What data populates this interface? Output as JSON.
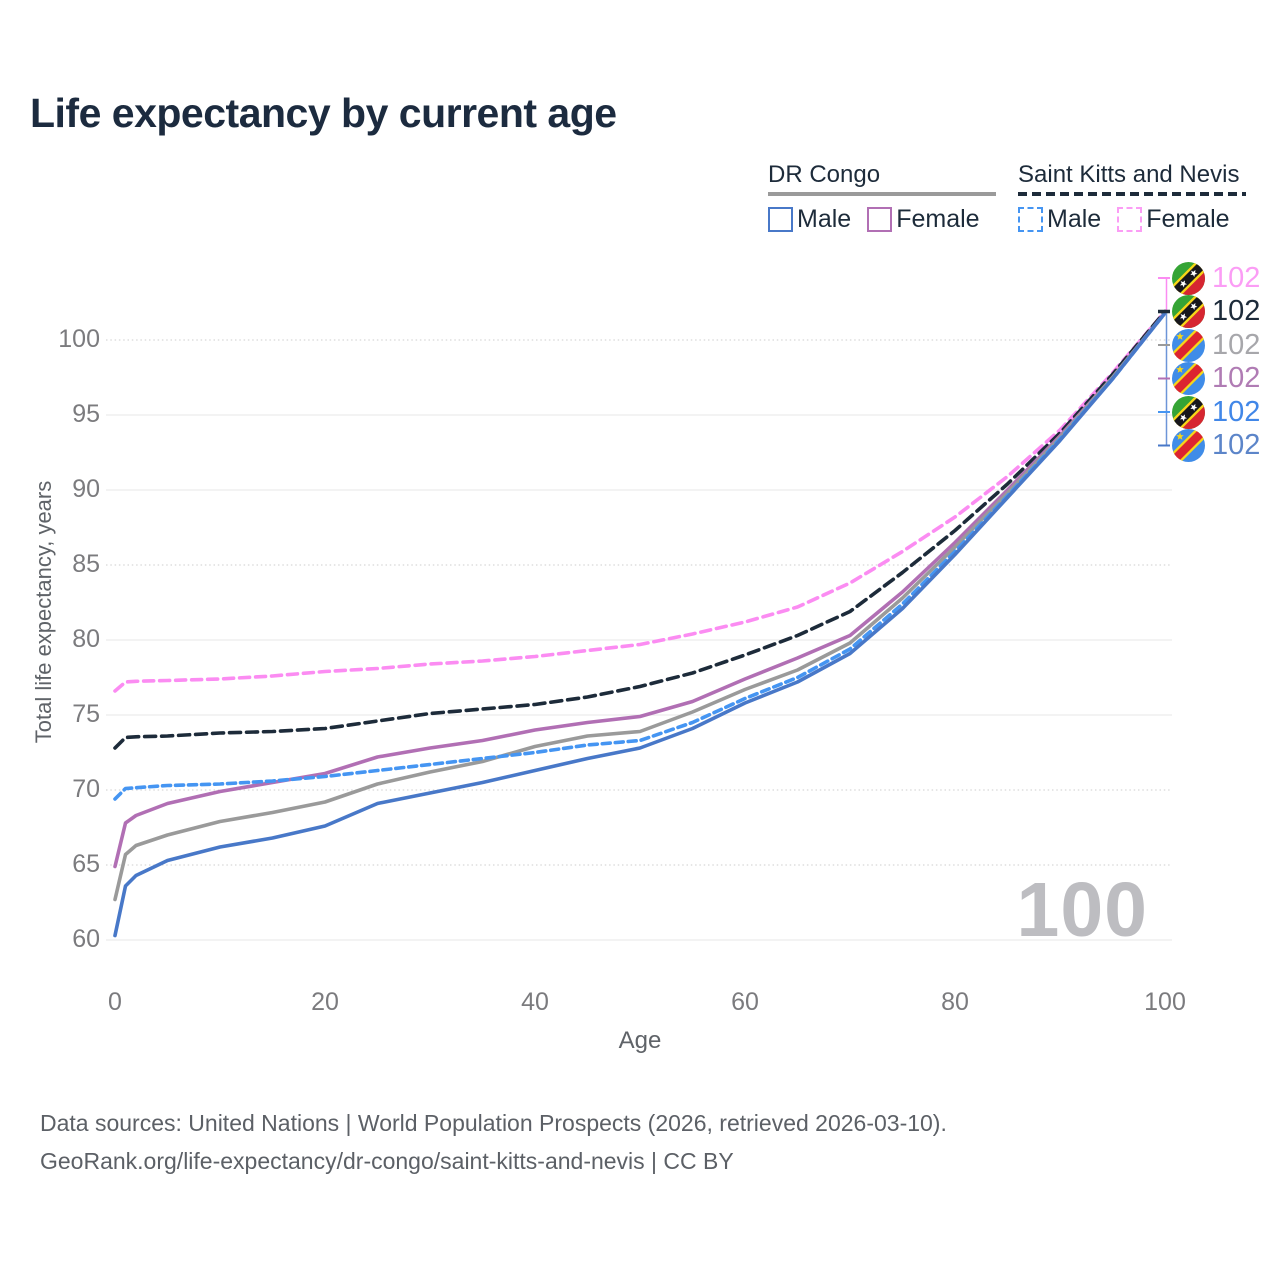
{
  "page": {
    "title": "Life expectancy by current age",
    "watermark": "100"
  },
  "legend": {
    "groups": [
      {
        "country": "DR Congo",
        "line_style": "solid",
        "underline_color": "#9a9a9a",
        "items": [
          {
            "label": "Male",
            "color": "#4878c8",
            "dashed": false
          },
          {
            "label": "Female",
            "color": "#b16fb4",
            "dashed": false
          }
        ]
      },
      {
        "country": "Saint Kitts and Nevis",
        "line_style": "dashed",
        "underline_color": "#1d2b3a",
        "items": [
          {
            "label": "Male",
            "color": "#4595f2",
            "dashed": true
          },
          {
            "label": "Female",
            "color": "#fb9df5",
            "dashed": true
          }
        ]
      }
    ]
  },
  "chart_data": {
    "type": "line",
    "title": "Life expectancy by current age",
    "xlabel": "Age",
    "ylabel": "Total life expectancy, years",
    "xlim": [
      0,
      100
    ],
    "ylim": [
      58,
      103
    ],
    "grid": true,
    "legend_position": "top-right",
    "x_ticks": [
      0,
      20,
      40,
      60,
      80,
      100
    ],
    "y_ticks": [
      {
        "value": 60,
        "style": "solid"
      },
      {
        "value": 65,
        "style": "dotted"
      },
      {
        "value": 70,
        "style": "dotted"
      },
      {
        "value": 75,
        "style": "solid"
      },
      {
        "value": 80,
        "style": "solid"
      },
      {
        "value": 85,
        "style": "dotted"
      },
      {
        "value": 90,
        "style": "solid"
      },
      {
        "value": 95,
        "style": "solid"
      },
      {
        "value": 100,
        "style": "dotted"
      }
    ],
    "ages": [
      0,
      1,
      2,
      5,
      10,
      15,
      20,
      25,
      30,
      35,
      40,
      45,
      50,
      55,
      60,
      65,
      70,
      75,
      80,
      85,
      90,
      95,
      100
    ],
    "series": [
      {
        "id": "skn-female",
        "country": "Saint Kitts and Nevis",
        "sex": "Female",
        "color": "#fb8cf2",
        "dash": "10 6",
        "flag": "skn",
        "end_label": "102",
        "end_label_color": "#fb9df5",
        "slot": 0,
        "values": [
          76.6,
          77.2,
          77.25,
          77.3,
          77.4,
          77.6,
          77.9,
          78.1,
          78.4,
          78.6,
          78.9,
          79.3,
          79.7,
          80.4,
          81.2,
          82.2,
          83.8,
          85.9,
          88.2,
          90.9,
          94.0,
          97.8,
          101.9
        ]
      },
      {
        "id": "skn-both",
        "country": "Saint Kitts and Nevis",
        "sex": "Both sexes",
        "color": "#1d2b3a",
        "dash": "11 6",
        "flag": "skn",
        "end_label": "102",
        "end_label_color": "#1d2b3a",
        "slot": 1,
        "values": [
          72.8,
          73.5,
          73.55,
          73.6,
          73.8,
          73.9,
          74.1,
          74.6,
          75.1,
          75.4,
          75.7,
          76.2,
          76.9,
          77.8,
          79.0,
          80.3,
          81.9,
          84.5,
          87.3,
          90.4,
          93.8,
          97.7,
          101.9
        ]
      },
      {
        "id": "drc-female",
        "country": "DR Congo",
        "sex": "Female",
        "color": "#b16fb4",
        "dash": null,
        "flag": "drc",
        "end_label": "102",
        "end_label_color": "#b07cb4",
        "slot": 3,
        "values": [
          64.9,
          67.8,
          68.3,
          69.1,
          69.9,
          70.5,
          71.1,
          72.2,
          72.8,
          73.3,
          74.0,
          74.5,
          74.9,
          75.9,
          77.4,
          78.8,
          80.3,
          83.2,
          86.5,
          90.0,
          93.6,
          97.5,
          101.8
        ]
      },
      {
        "id": "drc-both",
        "country": "DR Congo",
        "sex": "Both sexes",
        "color": "#9a9a9a",
        "dash": null,
        "flag": "drc",
        "end_label": "102",
        "end_label_color": "#a7a7ab",
        "slot": 2,
        "values": [
          62.7,
          65.7,
          66.3,
          67.0,
          67.9,
          68.5,
          69.2,
          70.4,
          71.2,
          71.9,
          72.9,
          73.6,
          73.9,
          75.2,
          76.7,
          78.0,
          79.8,
          82.8,
          86.2,
          89.8,
          93.5,
          97.5,
          101.8
        ]
      },
      {
        "id": "skn-male",
        "country": "Saint Kitts and Nevis",
        "sex": "Male",
        "color": "#4595f2",
        "dash": "8 5",
        "flag": "skn",
        "end_label": "102",
        "end_label_color": "#4187e8",
        "slot": 4,
        "values": [
          69.4,
          70.1,
          70.15,
          70.3,
          70.4,
          70.6,
          70.9,
          71.3,
          71.7,
          72.1,
          72.5,
          73.0,
          73.3,
          74.5,
          76.1,
          77.5,
          79.4,
          82.4,
          85.9,
          89.6,
          93.4,
          97.4,
          101.8
        ]
      },
      {
        "id": "drc-male",
        "country": "DR Congo",
        "sex": "Male",
        "color": "#4878c8",
        "dash": null,
        "flag": "drc",
        "end_label": "102",
        "end_label_color": "#5c85c9",
        "slot": 5,
        "values": [
          60.3,
          63.6,
          64.3,
          65.3,
          66.2,
          66.8,
          67.6,
          69.1,
          69.8,
          70.5,
          71.3,
          72.1,
          72.8,
          74.1,
          75.8,
          77.2,
          79.1,
          82.1,
          85.7,
          89.5,
          93.3,
          97.4,
          101.8
        ]
      }
    ]
  },
  "footer": {
    "line1": "Data sources: United Nations | World Population Prospects (2026, retrieved 2026-03-10).",
    "line2": "GeoRank.org/life-expectancy/dr-congo/saint-kitts-and-nevis | CC BY"
  }
}
